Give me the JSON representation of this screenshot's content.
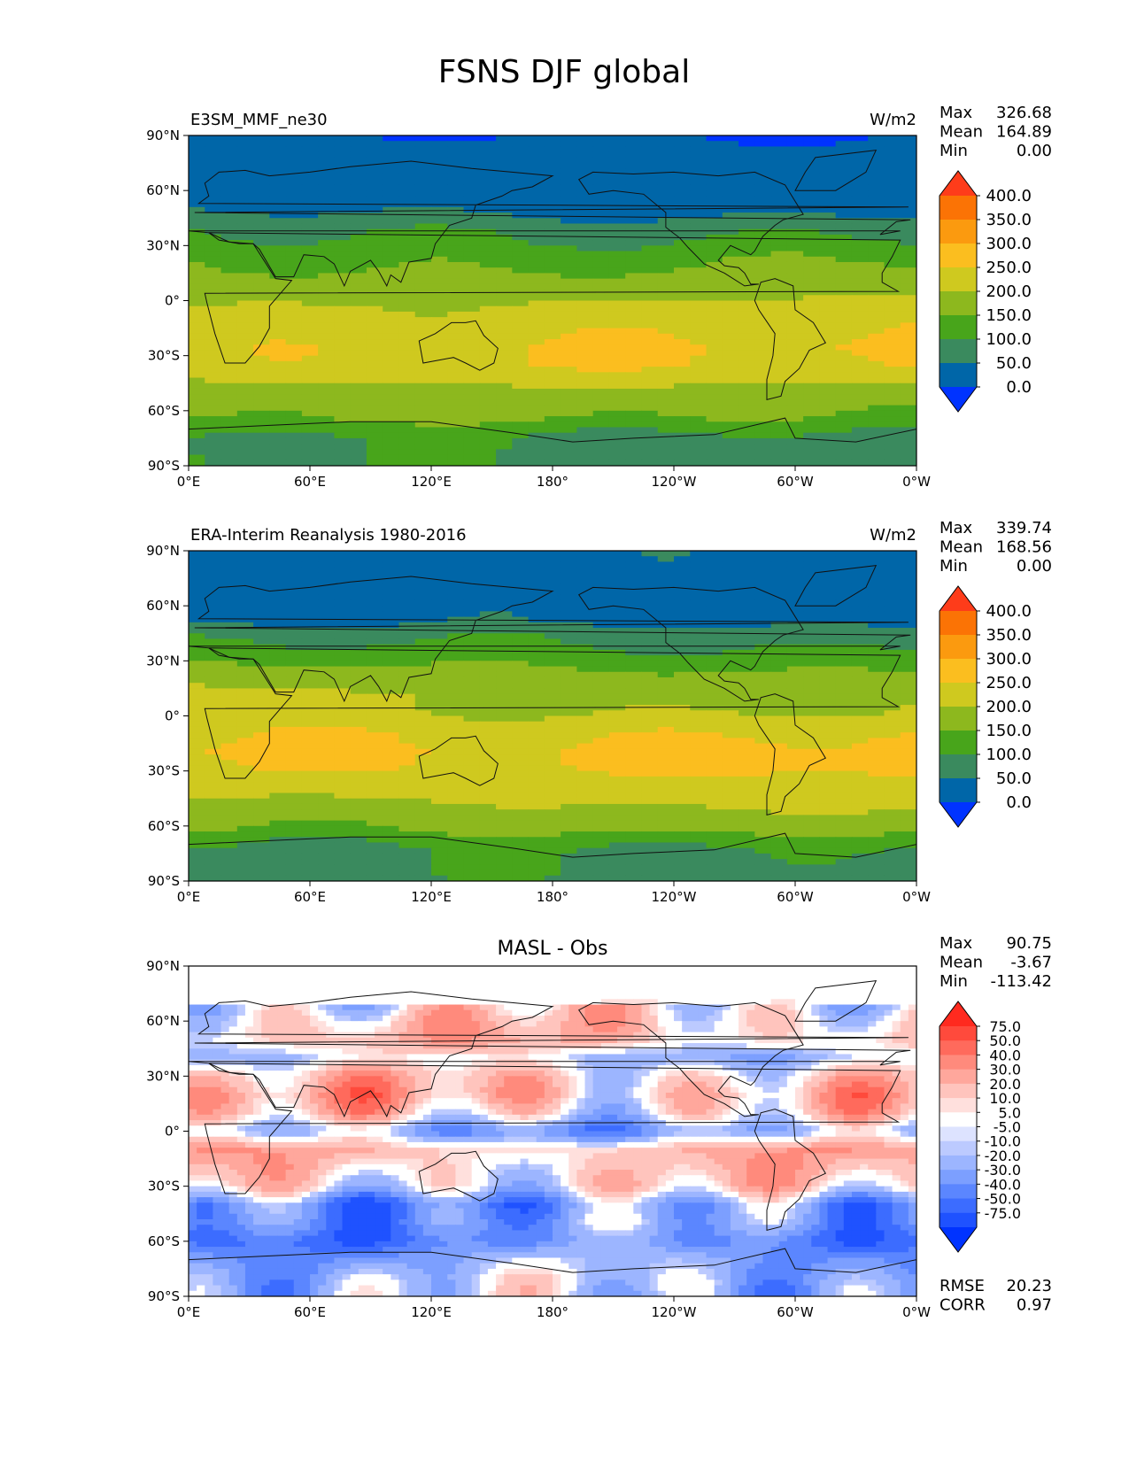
{
  "figure_title": "FSNS DJF global",
  "lat_ticks": [
    "90°N",
    "60°N",
    "30°N",
    "0°",
    "30°S",
    "60°S",
    "90°S"
  ],
  "lon_ticks": [
    "0°E",
    "60°E",
    "120°E",
    "180°",
    "120°W",
    "60°W",
    "0°W"
  ],
  "colors": {
    "fsns": [
      "#0033ff",
      "#0066a8",
      "#3a8a5e",
      "#48a51b",
      "#8db81e",
      "#cfc91f",
      "#fbbe1f",
      "#fb9a0f",
      "#fb7305",
      "#fe3c1a"
    ],
    "diff": [
      "#0033ff",
      "#1f52ff",
      "#3c6cff",
      "#5b86ff",
      "#7c9fff",
      "#9cb5ff",
      "#bccaff",
      "#dde3ff",
      "#ffffff",
      "#ffe0dd",
      "#ffc4bd",
      "#ffa79c",
      "#ff8a7c",
      "#ff6a5c",
      "#ff4a3c",
      "#ff2a1f"
    ]
  },
  "chart_data": [
    {
      "type": "heatmap",
      "title": "E3SM_MMF_ne30",
      "units": "W/m2",
      "stats": [
        {
          "label": "Max",
          "value": "326.68"
        },
        {
          "label": "Mean",
          "value": "164.89"
        },
        {
          "label": "Min",
          "value": "0.00"
        }
      ],
      "colorbar_levels": [
        "400.0",
        "350.0",
        "300.0",
        "250.0",
        "200.0",
        "150.0",
        "100.0",
        "50.0",
        "0.0"
      ],
      "zonal_profile": {
        "lat": [
          90,
          87,
          84,
          75,
          65,
          52,
          45,
          40,
          32,
          25,
          15,
          5,
          -5,
          -15,
          -25,
          -35,
          -42,
          -50,
          -58,
          -65,
          -70,
          -75,
          -90
        ],
        "value": [
          0,
          0,
          25,
          25,
          25,
          30,
          60,
          90,
          110,
          140,
          160,
          185,
          215,
          230,
          245,
          240,
          210,
          175,
          160,
          145,
          110,
          90,
          90
        ]
      },
      "xlim": [
        0,
        360
      ],
      "ylim": [
        -90,
        90
      ]
    },
    {
      "type": "heatmap",
      "title": "ERA-Interim Reanalysis 1980-2016",
      "units": "W/m2",
      "stats": [
        {
          "label": "Max",
          "value": "339.74"
        },
        {
          "label": "Mean",
          "value": "168.56"
        },
        {
          "label": "Min",
          "value": "0.00"
        }
      ],
      "colorbar_levels": [
        "400.0",
        "350.0",
        "300.0",
        "250.0",
        "200.0",
        "150.0",
        "100.0",
        "50.0",
        "0.0"
      ],
      "zonal_profile": {
        "lat": [
          90,
          75,
          62,
          52,
          45,
          38,
          30,
          22,
          12,
          2,
          -8,
          -18,
          -28,
          -38,
          -48,
          -55,
          -62,
          -68,
          -75,
          -90
        ],
        "value": [
          25,
          25,
          25,
          30,
          75,
          100,
          130,
          170,
          200,
          205,
          245,
          265,
          260,
          225,
          200,
          175,
          155,
          110,
          85,
          85
        ]
      },
      "xlim": [
        0,
        360
      ],
      "ylim": [
        -90,
        90
      ]
    },
    {
      "type": "heatmap",
      "title": "MASL - Obs",
      "stats": [
        {
          "label": "Max",
          "value": "90.75"
        },
        {
          "label": "Mean",
          "value": "-3.67"
        },
        {
          "label": "Min",
          "value": "-113.42"
        }
      ],
      "colorbar_levels": [
        "75.0",
        "50.0",
        "40.0",
        "30.0",
        "20.0",
        "10.0",
        "5.0",
        "-5.0",
        "-10.0",
        "-20.0",
        "-30.0",
        "-40.0",
        "-50.0",
        "-75.0"
      ],
      "footer_stats": [
        {
          "label": "RMSE",
          "value": "20.23"
        },
        {
          "label": "CORR",
          "value": "0.97"
        }
      ],
      "zonal_profile": {
        "lat": [
          90,
          80,
          70,
          60,
          50,
          40,
          30,
          20,
          10,
          0,
          -10,
          -20,
          -30,
          -40,
          -50,
          -60,
          -70,
          -80,
          -90
        ],
        "value": [
          0,
          0,
          2,
          12,
          15,
          -8,
          12,
          20,
          8,
          -22,
          18,
          12,
          5,
          -28,
          -26,
          -35,
          -20,
          -12,
          -12
        ]
      },
      "xlim": [
        0,
        360
      ],
      "ylim": [
        -90,
        90
      ]
    }
  ]
}
